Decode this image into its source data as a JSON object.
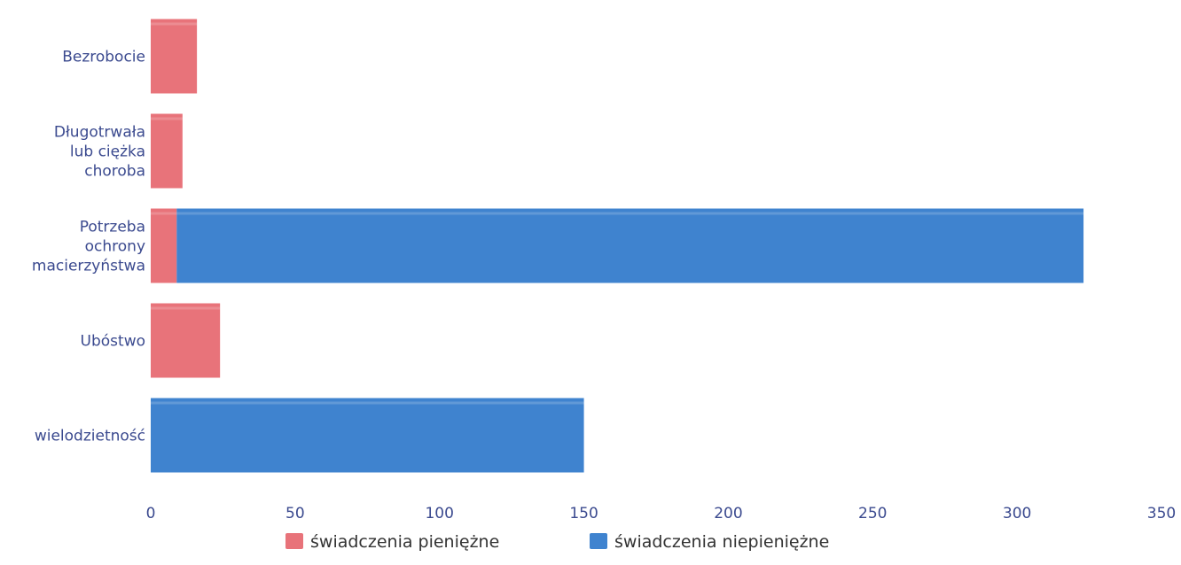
{
  "chart_data": {
    "type": "bar",
    "orientation": "horizontal",
    "stacked": true,
    "categories": [
      [
        "Bezrobocie"
      ],
      [
        "Długotrwała",
        "lub ciężka",
        "choroba"
      ],
      [
        "Potrzeba",
        "ochrony",
        "macierzyństwa"
      ],
      [
        "Ubóstwo"
      ],
      [
        "wielodzietność"
      ]
    ],
    "series": [
      {
        "name": "świadczenia pieniężne",
        "color": "#e8737a",
        "values": [
          16,
          11,
          9,
          24,
          0
        ]
      },
      {
        "name": "świadczenia niepieniężne",
        "color": "#3f83cf",
        "values": [
          0,
          0,
          314,
          0,
          150
        ]
      }
    ],
    "xlim": [
      0,
      350
    ],
    "xticks": [
      0,
      50,
      100,
      150,
      200,
      250,
      300,
      350
    ],
    "legend_position": "bottom",
    "grid": false
  }
}
